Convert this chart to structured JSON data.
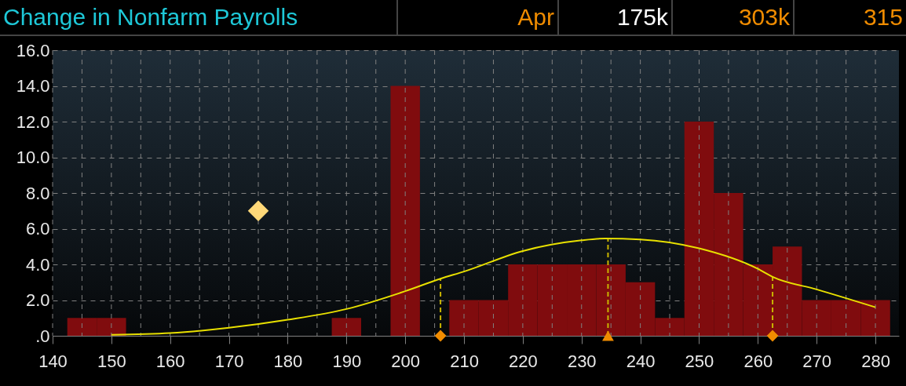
{
  "chart_data": {
    "type": "histogram",
    "title": "Change in Nonfarm Payrolls",
    "annotations": [
      "Apr",
      "175k",
      "303k",
      "315"
    ],
    "bins": [
      142.5,
      147.5,
      152.5,
      157.5,
      162.5,
      167.5,
      172.5,
      177.5,
      182.5,
      187.5,
      192.5,
      197.5,
      202.5,
      207.5,
      212.5,
      217.5,
      222.5,
      227.5,
      232.5,
      237.5,
      242.5,
      247.5,
      252.5,
      257.5,
      262.5,
      267.5,
      272.5,
      277.5,
      282.5
    ],
    "values": [
      1,
      1,
      0,
      0,
      0,
      0,
      0,
      0,
      0,
      1,
      0,
      14,
      0,
      2,
      2,
      4,
      4,
      4,
      4,
      3,
      1,
      12,
      8,
      4,
      5,
      2,
      2,
      2
    ],
    "color": "#800c0e",
    "series": [
      {
        "type": "line",
        "color": "#e8e000",
        "marker": "none",
        "x": [
          150,
          160,
          170,
          180,
          190,
          200,
          206,
          210,
          220,
          230,
          234,
          240,
          250,
          260,
          262.5,
          270,
          280
        ],
        "values": [
          0.05,
          0.15,
          0.45,
          0.9,
          1.5,
          2.5,
          3.2,
          3.6,
          4.75,
          5.35,
          5.45,
          5.4,
          4.9,
          3.75,
          3.3,
          2.6,
          1.6
        ]
      },
      {
        "type": "scatter",
        "color": "#ffd878",
        "marker": "diamond",
        "x": [
          175
        ],
        "values": [
          7
        ]
      },
      {
        "type": "scatter",
        "color": "#f08c00",
        "marker": "diamond",
        "x": [
          206,
          262.5
        ],
        "values": [
          0,
          0
        ]
      },
      {
        "type": "scatter",
        "color": "#f08c00",
        "marker": "triangle",
        "x": [
          234.5
        ],
        "values": [
          0
        ]
      }
    ],
    "ref_lines": [
      {
        "axis": "x",
        "value": 206,
        "color": "#c8b400",
        "line_style": "dashed"
      },
      {
        "axis": "x",
        "value": 234.5,
        "color": "#c8b400",
        "line_style": "dashed"
      },
      {
        "axis": "x",
        "value": 262.5,
        "color": "#c8b400",
        "line_style": "dashed"
      }
    ],
    "xlim": [
      140,
      284
    ],
    "xticks": [
      140,
      {
        "value": 145,
        "label": null
      },
      150,
      {
        "value": 155,
        "label": null
      },
      160,
      {
        "value": 165,
        "label": null
      },
      170,
      {
        "value": 175,
        "label": null
      },
      180,
      {
        "value": 185,
        "label": null
      },
      190,
      {
        "value": 195,
        "label": null
      },
      200,
      {
        "value": 205,
        "label": null
      },
      210,
      {
        "value": 215,
        "label": null
      },
      220,
      {
        "value": 225,
        "label": null
      },
      230,
      {
        "value": 235,
        "label": null
      },
      240,
      {
        "value": 245,
        "label": null
      },
      250,
      {
        "value": 255,
        "label": null
      },
      260,
      {
        "value": 265,
        "label": null
      },
      270,
      {
        "value": 275,
        "label": null
      },
      280
    ],
    "ylim": [
      0,
      16
    ],
    "yticks": [
      {
        "value": 0,
        "label": ".0"
      },
      {
        "value": 2,
        "label": "2.0"
      },
      {
        "value": 4,
        "label": "4.0"
      },
      {
        "value": 6,
        "label": "6.0"
      },
      {
        "value": 8,
        "label": "8.0"
      },
      {
        "value": 10,
        "label": "10.0"
      },
      {
        "value": 12,
        "label": "12.0"
      },
      {
        "value": 14,
        "label": "14.0"
      },
      {
        "value": 16,
        "label": "16.0"
      }
    ],
    "grid": true
  }
}
